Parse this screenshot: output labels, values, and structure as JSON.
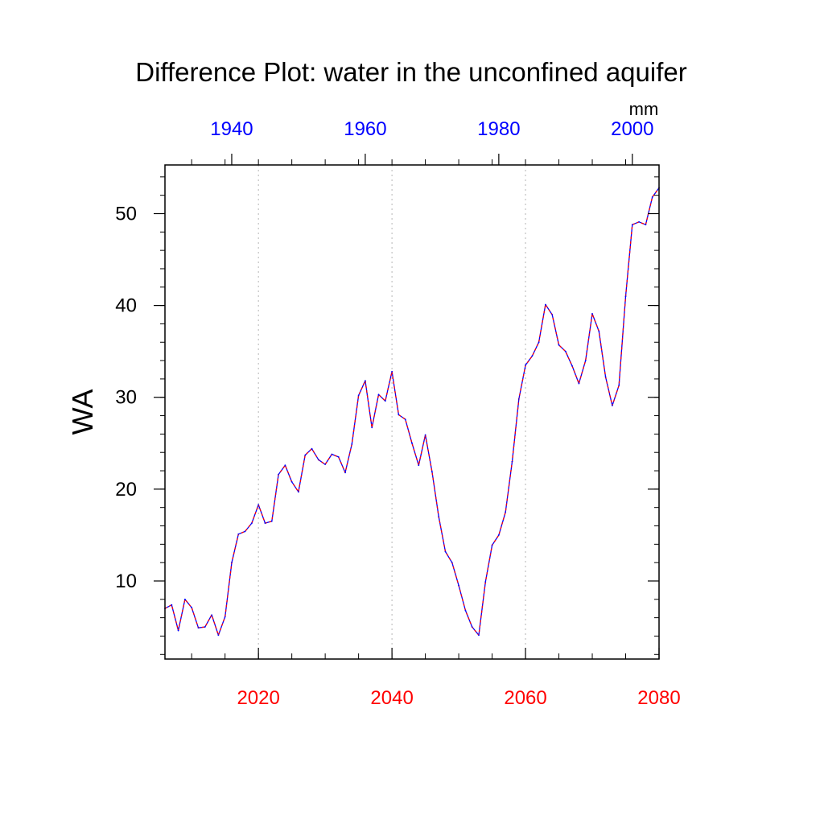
{
  "chart_data": {
    "type": "line",
    "title": "Difference Plot: water in the unconfined aquifer",
    "ylabel": "WA",
    "units_label": "mm",
    "xlim": [
      2006,
      2080
    ],
    "ylim": [
      1.5,
      55.3
    ],
    "bottom_axis": {
      "ticks": [
        2020,
        2040,
        2060,
        2080
      ],
      "labels": [
        "2020",
        "2040",
        "2060",
        "2080"
      ],
      "color": "#ff0000"
    },
    "top_axis": {
      "ticks": [
        2016,
        2036,
        2056,
        2076
      ],
      "labels": [
        "1940",
        "1960",
        "1980",
        "2000"
      ],
      "color": "#0000ff"
    },
    "y_ticks": [
      10,
      20,
      30,
      40,
      50
    ],
    "y_labels": [
      "10",
      "20",
      "30",
      "40",
      "50"
    ],
    "grid_x": [
      2020,
      2040,
      2060
    ],
    "series": [
      {
        "name": "difference",
        "color": "#0000ff",
        "dash_color": "#ff0000",
        "x": [
          2006,
          2007,
          2008,
          2009,
          2010,
          2011,
          2012,
          2013,
          2014,
          2015,
          2016,
          2017,
          2018,
          2019,
          2020,
          2021,
          2022,
          2023,
          2024,
          2025,
          2026,
          2027,
          2028,
          2029,
          2030,
          2031,
          2032,
          2033,
          2034,
          2035,
          2036,
          2037,
          2038,
          2039,
          2040,
          2041,
          2042,
          2043,
          2044,
          2045,
          2046,
          2047,
          2048,
          2049,
          2050,
          2051,
          2052,
          2053,
          2054,
          2055,
          2056,
          2057,
          2058,
          2059,
          2060,
          2061,
          2062,
          2063,
          2064,
          2065,
          2066,
          2067,
          2068,
          2069,
          2070,
          2071,
          2072,
          2073,
          2074,
          2075,
          2076,
          2077,
          2078,
          2079,
          2080
        ],
        "values": [
          7.0,
          7.4,
          4.6,
          8.0,
          7.1,
          4.9,
          5.0,
          6.3,
          4.1,
          6.1,
          12.0,
          15.1,
          15.4,
          16.3,
          18.3,
          16.3,
          16.5,
          21.6,
          22.6,
          20.8,
          19.7,
          23.7,
          24.4,
          23.2,
          22.7,
          23.8,
          23.5,
          21.8,
          24.9,
          30.2,
          31.8,
          26.7,
          30.3,
          29.6,
          32.8,
          28.1,
          27.6,
          25.0,
          22.6,
          25.9,
          21.9,
          17.0,
          13.2,
          12.0,
          9.5,
          6.8,
          5.0,
          4.1,
          9.9,
          13.9,
          15.0,
          17.5,
          23.0,
          29.8,
          33.5,
          34.5,
          36.0,
          40.1,
          39.0,
          35.7,
          35.0,
          33.4,
          31.5,
          34.0,
          39.1,
          37.2,
          32.2,
          29.1,
          31.3,
          41.0,
          48.8,
          49.1,
          48.8,
          51.8,
          52.8
        ]
      }
    ]
  }
}
